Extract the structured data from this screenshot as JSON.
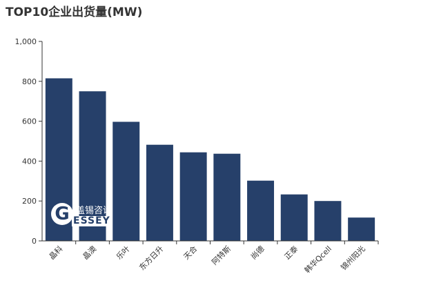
{
  "chart_data": {
    "type": "bar",
    "title": "TOP10企业出货量(MW)",
    "categories": [
      "晶科",
      "晶澳",
      "乐叶",
      "东方日升",
      "天合",
      "阿特斯",
      "尚德",
      "正泰",
      "韩华Qcell",
      "锦州阳光"
    ],
    "values": [
      815,
      750,
      597,
      482,
      444,
      437,
      302,
      233,
      200,
      117
    ],
    "yticks": [
      "0",
      "200",
      "400",
      "600",
      "800",
      "1,000"
    ],
    "ylim": [
      0,
      1000
    ],
    "bar_color": "#26406a",
    "grid": false
  },
  "watermark": {
    "letter": "G",
    "chinese": "盖锡咨询",
    "english": "ESSEY"
  }
}
